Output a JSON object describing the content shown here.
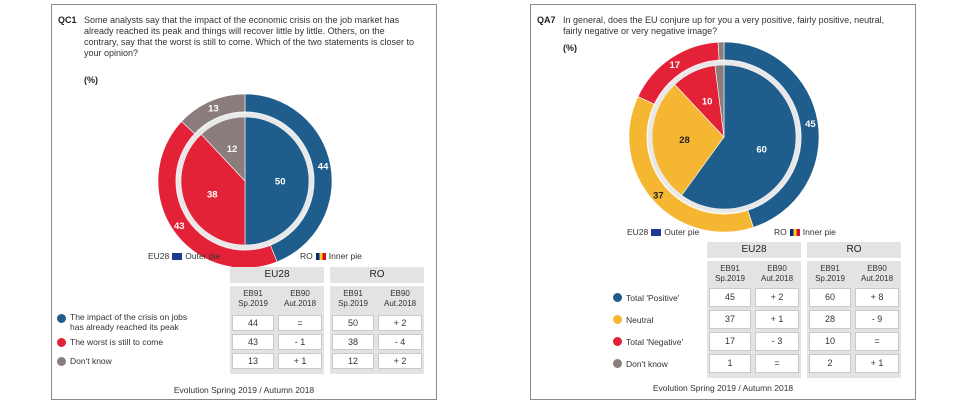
{
  "colors": {
    "blue": "#1f5d8c",
    "red": "#e42237",
    "grey": "#8c7d7d",
    "yellow": "#f5b731",
    "ring": "#e8e8e8"
  },
  "chart_data": [
    {
      "type": "pie",
      "code": "QC1",
      "question": "Some analysts say that the impact of the economic crisis on the job market has already reached its peak and things will recover little by little. Others, on the contrary, say that the worst is still to come. Which of the two statements is closer to your opinion?",
      "unit": "(%)",
      "categories": [
        "The impact of the crisis on jobs has already reached its peak",
        "The worst is still to come",
        "Don't know"
      ],
      "series": [
        {
          "name": "EU28",
          "ring": "Outer pie",
          "values": [
            44,
            43,
            13
          ]
        },
        {
          "name": "RO",
          "ring": "Inner pie",
          "values": [
            50,
            38,
            12
          ]
        }
      ],
      "legend_eu": "EU28",
      "legend_outer": "Outer pie",
      "legend_ro": "RO",
      "legend_inner": "Inner pie",
      "table": {
        "group_headers": [
          "EU28",
          "RO"
        ],
        "sub_headers": [
          [
            "EB91",
            "Sp.2019"
          ],
          [
            "EB90",
            "Aut.2018"
          ],
          [
            "EB91",
            "Sp.2019"
          ],
          [
            "EB90",
            "Aut.2018"
          ]
        ],
        "rows": [
          {
            "label": [
              "The impact of the crisis on jobs",
              "has already reached its peak"
            ],
            "color": "#1f5d8c",
            "cells": [
              "44",
              "=",
              "50",
              "+ 2"
            ]
          },
          {
            "label": [
              "The worst is still to come"
            ],
            "color": "#e42237",
            "cells": [
              "43",
              "- 1",
              "38",
              "- 4"
            ]
          },
          {
            "label": [
              "Don't know"
            ],
            "color": "#8c7d7d",
            "cells": [
              "13",
              "+ 1",
              "12",
              "+ 2"
            ]
          }
        ]
      },
      "footer": "Evolution Spring 2019 / Autumn 2018"
    },
    {
      "type": "pie",
      "code": "QA7",
      "question": "In general, does the EU conjure up for you a very positive, fairly positive, neutral, fairly negative or very negative image?",
      "unit": "(%)",
      "categories": [
        "Total 'Positive'",
        "Neutral",
        "Total 'Negative'",
        "Don't know"
      ],
      "series": [
        {
          "name": "EU28",
          "ring": "Outer pie",
          "values": [
            45,
            37,
            17,
            1
          ]
        },
        {
          "name": "RO",
          "ring": "Inner pie",
          "values": [
            60,
            28,
            10,
            2
          ]
        }
      ],
      "legend_eu": "EU28",
      "legend_outer": "Outer pie",
      "legend_ro": "RO",
      "legend_inner": "Inner pie",
      "table": {
        "group_headers": [
          "EU28",
          "RO"
        ],
        "sub_headers": [
          [
            "EB91",
            "Sp.2019"
          ],
          [
            "EB90",
            "Aut.2018"
          ],
          [
            "EB91",
            "Sp.2019"
          ],
          [
            "EB90",
            "Aut.2018"
          ]
        ],
        "rows": [
          {
            "label": [
              "Total 'Positive'"
            ],
            "color": "#1f5d8c",
            "cells": [
              "45",
              "+ 2",
              "60",
              "+ 8"
            ]
          },
          {
            "label": [
              "Neutral"
            ],
            "color": "#f5b731",
            "cells": [
              "37",
              "+ 1",
              "28",
              "- 9"
            ]
          },
          {
            "label": [
              "Total 'Negative'"
            ],
            "color": "#e42237",
            "cells": [
              "17",
              "- 3",
              "10",
              "="
            ]
          },
          {
            "label": [
              "Don't know"
            ],
            "color": "#8c7d7d",
            "cells": [
              "1",
              "=",
              "2",
              "+ 1"
            ]
          }
        ]
      },
      "footer": "Evolution Spring 2019 / Autumn 2018"
    }
  ]
}
